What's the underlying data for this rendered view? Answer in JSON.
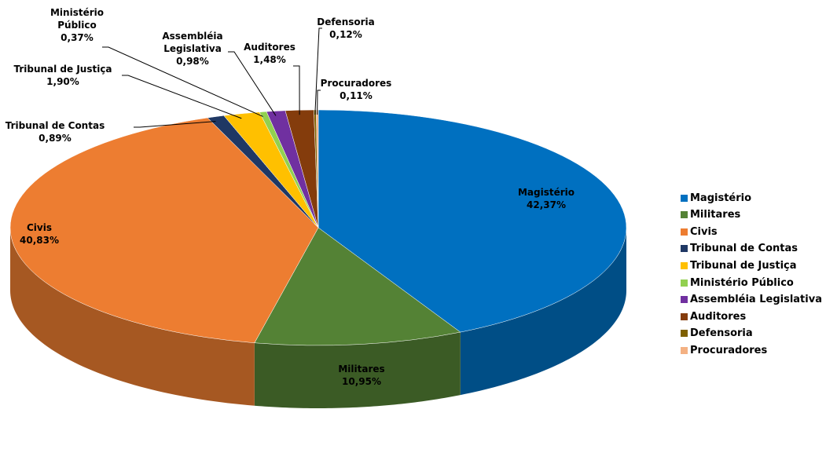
{
  "chart_data": {
    "type": "pie",
    "categories": [
      "Magistério",
      "Militares",
      "Civis",
      "Tribunal de Contas",
      "Tribunal de Justiça",
      "Ministério Público",
      "Assembléia Legislativa",
      "Auditores",
      "Defensoria",
      "Procuradores"
    ],
    "values": [
      42.37,
      10.95,
      40.83,
      0.89,
      1.9,
      0.37,
      0.98,
      1.48,
      0.12,
      0.11
    ],
    "value_labels": [
      "42,37%",
      "10,95%",
      "40,83%",
      "0,89%",
      "1,90%",
      "0,37%",
      "0,98%",
      "1,48%",
      "0,12%",
      "0,11%"
    ],
    "colors": [
      "#0070c0",
      "#548235",
      "#ed7d31",
      "#1f3864",
      "#ffc000",
      "#92d050",
      "#7030a0",
      "#843c0c",
      "#7f6000",
      "#f4b183"
    ],
    "legend": "right"
  }
}
